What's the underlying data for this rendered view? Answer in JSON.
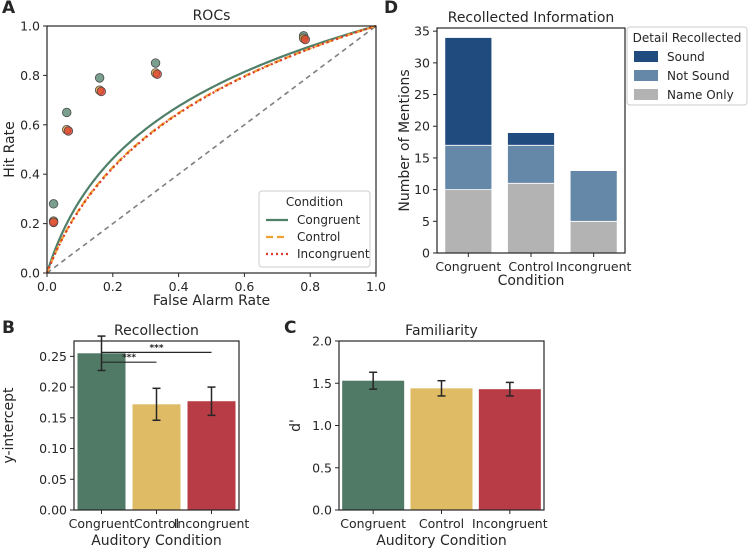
{
  "chart_data": [
    {
      "id": "A",
      "type": "line",
      "panel_label": "A",
      "title": "ROCs",
      "xlabel": "False Alarm Rate",
      "ylabel": "Hit Rate",
      "xlim": [
        0,
        1
      ],
      "ylim": [
        0,
        1
      ],
      "xticks": [
        "0.0",
        "0.2",
        "0.4",
        "0.6",
        "0.8",
        "1.0"
      ],
      "yticks": [
        "0.0",
        "0.2",
        "0.4",
        "0.6",
        "0.8",
        "1.0"
      ],
      "legend_title": "Condition",
      "legend_position": "lower-right",
      "series": [
        {
          "name": "Congruent",
          "color": "#4f7f69",
          "style": "solid",
          "curve_k": 10.5,
          "points": [
            [
              0.02,
              0.28
            ],
            [
              0.06,
              0.65
            ],
            [
              0.16,
              0.79
            ],
            [
              0.33,
              0.85
            ],
            [
              0.78,
              0.96
            ]
          ]
        },
        {
          "name": "Control",
          "color": "#f0a030",
          "style": "dashed",
          "curve_k": 7.5,
          "points": [
            [
              0.02,
              0.21
            ],
            [
              0.06,
              0.58
            ],
            [
              0.16,
              0.74
            ],
            [
              0.33,
              0.81
            ],
            [
              0.78,
              0.95
            ]
          ]
        },
        {
          "name": "Incongruent",
          "color": "#d93a2b",
          "style": "dotted",
          "curve_k": 7.3,
          "points": [
            [
              0.02,
              0.205
            ],
            [
              0.065,
              0.575
            ],
            [
              0.165,
              0.735
            ],
            [
              0.335,
              0.805
            ],
            [
              0.785,
              0.945
            ]
          ]
        }
      ],
      "chance_line": {
        "color": "#7f7f7f",
        "style": "dashed"
      }
    },
    {
      "id": "B",
      "type": "bar",
      "panel_label": "B",
      "title": "Recollection",
      "xlabel": "Auditory Condition",
      "ylabel": "y-intercept",
      "ylim": [
        0,
        0.275
      ],
      "yticks": [
        "0.00",
        "0.05",
        "0.10",
        "0.15",
        "0.20",
        "0.25"
      ],
      "categories": [
        "Congruent",
        "Control",
        "Incongruent"
      ],
      "values": [
        0.255,
        0.172,
        0.177
      ],
      "errors": [
        0.028,
        0.026,
        0.023
      ],
      "colors": [
        "#507a66",
        "#dfbb66",
        "#b83c45"
      ],
      "significance": [
        {
          "from": 0,
          "to": 1,
          "label": "***"
        },
        {
          "from": 0,
          "to": 2,
          "label": "***"
        }
      ]
    },
    {
      "id": "C",
      "type": "bar",
      "panel_label": "C",
      "title": "Familiarity",
      "xlabel": "Auditory Condition",
      "ylabel": "d'",
      "ylim": [
        0,
        2.0
      ],
      "yticks": [
        "0.0",
        "0.5",
        "1.0",
        "1.5",
        "2.0"
      ],
      "categories": [
        "Congruent",
        "Control",
        "Incongruent"
      ],
      "values": [
        1.53,
        1.44,
        1.43
      ],
      "errors": [
        0.1,
        0.09,
        0.08
      ],
      "colors": [
        "#507a66",
        "#dfbb66",
        "#b83c45"
      ]
    },
    {
      "id": "D",
      "type": "bar",
      "stacked": true,
      "panel_label": "D",
      "title": "Recollected Information",
      "xlabel": "Condition",
      "ylabel": "Number of Mentions",
      "ylim": [
        0,
        35.5
      ],
      "yticks": [
        "0",
        "5",
        "10",
        "15",
        "20",
        "25",
        "30",
        "35"
      ],
      "categories": [
        "Congruent",
        "Control",
        "Incongruent"
      ],
      "legend_title": "Detail Recollected",
      "legend_position": "outside-right",
      "series": [
        {
          "name": "Name Only",
          "color": "#b3b3b3",
          "values": [
            10,
            11,
            5
          ]
        },
        {
          "name": "Not Sound",
          "color": "#6587a8",
          "values": [
            7,
            6,
            8
          ]
        },
        {
          "name": "Sound",
          "color": "#1f4b7f",
          "values": [
            17,
            2,
            0
          ]
        }
      ],
      "legend_order": [
        "Sound",
        "Not Sound",
        "Name Only"
      ]
    }
  ]
}
